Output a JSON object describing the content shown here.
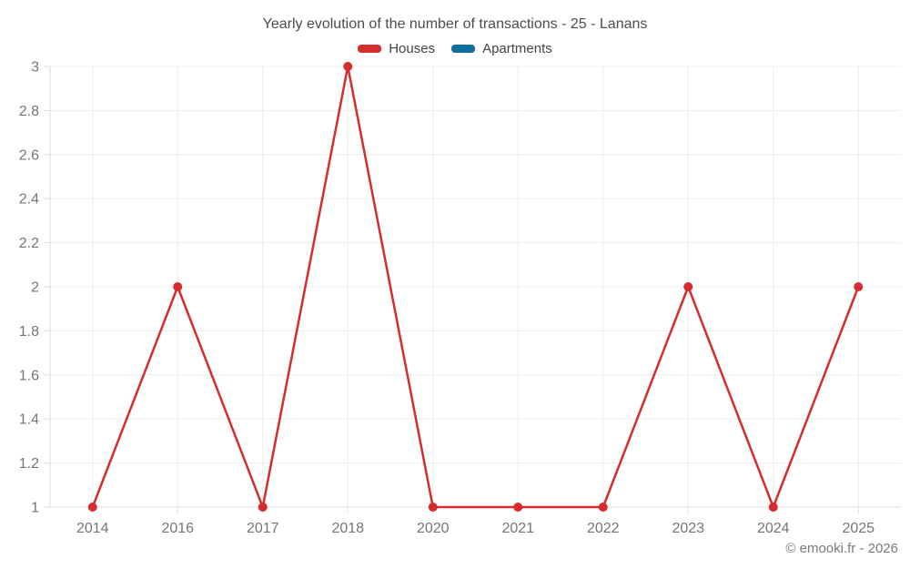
{
  "title": "Yearly evolution of the number of transactions - 25 - Lanans",
  "legend": [
    {
      "label": "Houses",
      "color": "#d62b2f"
    },
    {
      "label": "Apartments",
      "color": "#0e6e9c"
    }
  ],
  "watermark": "© emooki.fr - 2026",
  "colors": {
    "grid": "#ececec",
    "axis": "#dedede",
    "tick_label": "#757575",
    "title": "#4c4c4c",
    "legend_text": "#444444",
    "watermark": "#7a7a7a"
  },
  "chart_data": {
    "type": "line",
    "title": "Yearly evolution of the number of transactions - 25 - Lanans",
    "categories": [
      "2014",
      "2016",
      "2017",
      "2018",
      "2020",
      "2021",
      "2022",
      "2023",
      "2024",
      "2025"
    ],
    "series": [
      {
        "name": "Houses",
        "color": "#d62b2f",
        "values": [
          1,
          2,
          1,
          3,
          1,
          1,
          1,
          2,
          1,
          2
        ]
      },
      {
        "name": "Apartments",
        "color": "#0e6e9c",
        "values": []
      }
    ],
    "xlabel": "",
    "ylabel": "",
    "ylim": [
      1,
      3
    ],
    "ytick_step": 0.2,
    "ytick_labels": [
      "1",
      "1.2",
      "1.4",
      "1.6",
      "1.8",
      "2",
      "2.2",
      "2.4",
      "2.6",
      "2.8",
      "3"
    ],
    "grid": true,
    "legend_position": "top",
    "marker_radius": 5,
    "line_width": 2.5
  }
}
